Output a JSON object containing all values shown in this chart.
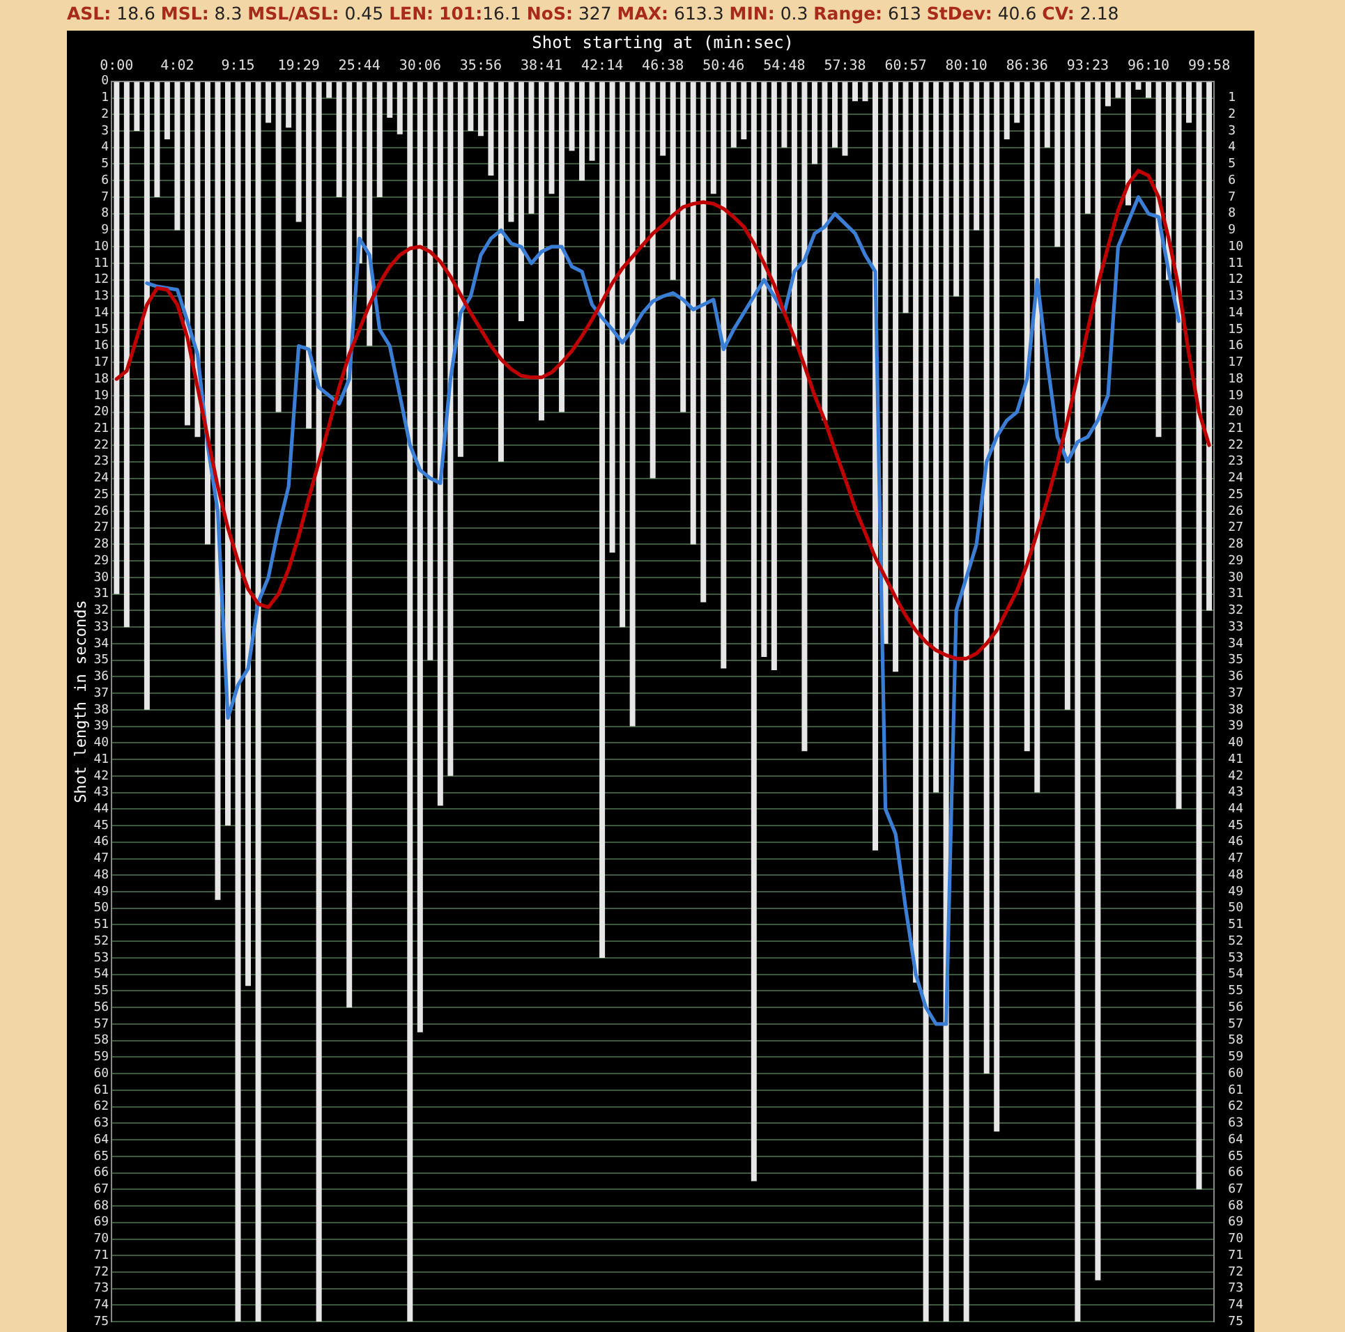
{
  "chart_data": {
    "type": "bar",
    "title": "ASL: 18.6 MSL: 8.3 MSL/ASL: 0.45 LEN: 101:16.1 NoS: 327 MAX: 613.3 MIN: 0.3 Range: 613 StDev: 40.6 CV: 2.18",
    "xlabel": "Shot starting at (min:sec)",
    "ylabel": "Shot length in seconds",
    "categories": [
      "0:00",
      null,
      null,
      null,
      null,
      null,
      "4:02",
      null,
      null,
      null,
      null,
      null,
      "9:15",
      null,
      null,
      null,
      null,
      null,
      "19:29",
      null,
      null,
      null,
      null,
      null,
      "25:44",
      null,
      null,
      null,
      null,
      null,
      "30:06",
      null,
      null,
      null,
      null,
      null,
      "35:56",
      null,
      null,
      null,
      null,
      null,
      "38:41",
      null,
      null,
      null,
      null,
      null,
      "42:14",
      null,
      null,
      null,
      null,
      null,
      "46:38",
      null,
      null,
      null,
      null,
      null,
      "50:46",
      null,
      null,
      null,
      null,
      null,
      "54:48",
      null,
      null,
      null,
      null,
      null,
      "57:38",
      null,
      null,
      null,
      null,
      null,
      "60:57",
      null,
      null,
      null,
      null,
      null,
      "80:10",
      null,
      null,
      null,
      null,
      null,
      "86:36",
      null,
      null,
      null,
      null,
      null,
      "93:23",
      null,
      null,
      null,
      null,
      null,
      "96:10",
      null,
      null,
      null,
      null,
      null,
      "99:58"
    ],
    "series": [
      {
        "color": "#e6e6e6",
        "values": [
          31,
          33,
          3,
          38,
          7,
          3.5,
          9,
          20.8,
          21.5,
          28,
          49.5,
          45,
          75,
          54.7,
          75,
          2.5,
          20,
          2.8,
          8.5,
          21,
          75,
          1,
          7,
          56,
          11,
          16,
          7,
          2.2,
          3.2,
          75,
          57.5,
          35,
          43.8,
          42,
          22.7,
          3,
          3.3,
          5.7,
          23,
          8.5,
          14.5,
          8,
          20.5,
          6.8,
          20,
          4.2,
          6,
          4.8,
          53,
          28.5,
          33,
          39,
          10,
          24,
          4.5,
          12,
          20,
          28,
          31.5,
          6.8,
          35.5,
          4,
          3.5,
          66.5,
          34.8,
          35.6,
          4,
          16,
          40.5,
          5,
          20.5,
          4,
          4.5,
          1.2,
          1.2,
          46.5,
          34,
          35.7,
          14,
          54.5,
          75,
          43,
          75,
          13,
          75,
          9,
          60,
          63.5,
          3.5,
          2.5,
          40.5,
          43,
          4,
          10,
          38,
          75,
          8,
          72.5,
          1.5,
          1,
          7.5,
          0.5,
          1,
          21.5,
          12,
          44,
          2.5,
          67,
          32
        ]
      },
      {
        "type": "line",
        "color": "#c00000",
        "values": [
          18,
          17.5,
          15.5,
          13.5,
          12.5,
          12.6,
          13.5,
          15.5,
          18.5,
          21.5,
          24.5,
          27,
          29,
          30.7,
          31.6,
          31.8,
          31,
          29.5,
          27.5,
          25.2,
          23,
          20.8,
          18.5,
          16.5,
          15,
          13.5,
          12.2,
          11.2,
          10.5,
          10.1,
          10,
          10.3,
          10.9,
          11.8,
          12.9,
          14,
          15,
          16,
          16.8,
          17.4,
          17.8,
          17.9,
          17.9,
          17.6,
          17,
          16.3,
          15.4,
          14.4,
          13.3,
          12.2,
          11.3,
          10.6,
          9.9,
          9.2,
          8.7,
          8.1,
          7.6,
          7.4,
          7.3,
          7.4,
          7.7,
          8.2,
          8.8,
          9.8,
          11,
          12.3,
          14,
          15.5,
          17.2,
          19,
          20.5,
          22.3,
          24,
          25.8,
          27.3,
          28.8,
          30,
          31.2,
          32.3,
          33.2,
          33.9,
          34.4,
          34.7,
          34.9,
          34.9,
          34.6,
          34,
          33.2,
          32,
          30.8,
          29.2,
          27.3,
          25.3,
          23,
          20.5,
          17.8,
          15,
          12.3,
          10,
          7.8,
          6.2,
          5.4,
          5.7,
          7,
          9.5,
          12.5,
          16.5,
          20,
          22
        ]
      },
      {
        "type": "line",
        "color": "#3a7fd5",
        "values": [
          null,
          null,
          null,
          12.2,
          12.4,
          12.5,
          12.6,
          14.5,
          16.5,
          22,
          26,
          38.5,
          36.5,
          35.5,
          31.5,
          30,
          27,
          24.5,
          16,
          16.2,
          18.5,
          19,
          19.5,
          18,
          9.5,
          10.5,
          15,
          16,
          19,
          22,
          23.5,
          24,
          24.3,
          18,
          14,
          13,
          10.5,
          9.5,
          9,
          9.8,
          10,
          11,
          10.3,
          10,
          10,
          11.2,
          11.5,
          13.5,
          14.3,
          15,
          15.8,
          15,
          14,
          13.3,
          13,
          12.8,
          13.2,
          13.8,
          13.5,
          13.2,
          16.2,
          15,
          14,
          13,
          12,
          13,
          14,
          11.5,
          10.8,
          9.2,
          8.8,
          8,
          8.6,
          9.2,
          10.5,
          11.5,
          44,
          45.5,
          50,
          54,
          56,
          57,
          57,
          32,
          30,
          28,
          23,
          21.5,
          20.5,
          20,
          18,
          12,
          17,
          21.5,
          23,
          21.8,
          21.5,
          20.5,
          19,
          10,
          8.5,
          7,
          8,
          8.2,
          11.5,
          14.5,
          null,
          null,
          null
        ]
      }
    ],
    "ylim": [
      75,
      0
    ],
    "yticks": [
      0,
      1,
      2,
      3,
      4,
      5,
      6,
      7,
      8,
      9,
      10,
      11,
      12,
      13,
      14,
      15,
      16,
      17,
      18,
      19,
      20,
      21,
      22,
      23,
      24,
      25,
      26,
      27,
      28,
      29,
      30,
      31,
      32,
      33,
      34,
      35,
      36,
      37,
      38,
      39,
      40,
      41,
      42,
      43,
      44,
      45,
      46,
      47,
      48,
      49,
      50,
      51,
      52,
      53,
      54,
      55,
      56,
      57,
      58,
      59,
      60,
      61,
      62,
      63,
      64,
      65,
      66,
      67,
      68,
      69,
      70,
      71,
      72,
      73,
      74,
      75
    ],
    "y2lim": [
      75,
      0
    ],
    "y2ticks": [
      1,
      2,
      3,
      4,
      5,
      6,
      7,
      8,
      9,
      10,
      11,
      12,
      13,
      14,
      15,
      16,
      17,
      18,
      19,
      20,
      21,
      22,
      23,
      24,
      25,
      26,
      27,
      28,
      29,
      30,
      31,
      32,
      33,
      34,
      35,
      36,
      37,
      38,
      39,
      40,
      41,
      42,
      43,
      44,
      45,
      46,
      47,
      48,
      49,
      50,
      51,
      52,
      53,
      54,
      55,
      56,
      57,
      58,
      59,
      60,
      61,
      62,
      63,
      64,
      65,
      66,
      67,
      68,
      69,
      70,
      71,
      72,
      73,
      74,
      75
    ],
    "grid": "y",
    "marker": "none",
    "line_style": "solid",
    "legend": false
  }
}
